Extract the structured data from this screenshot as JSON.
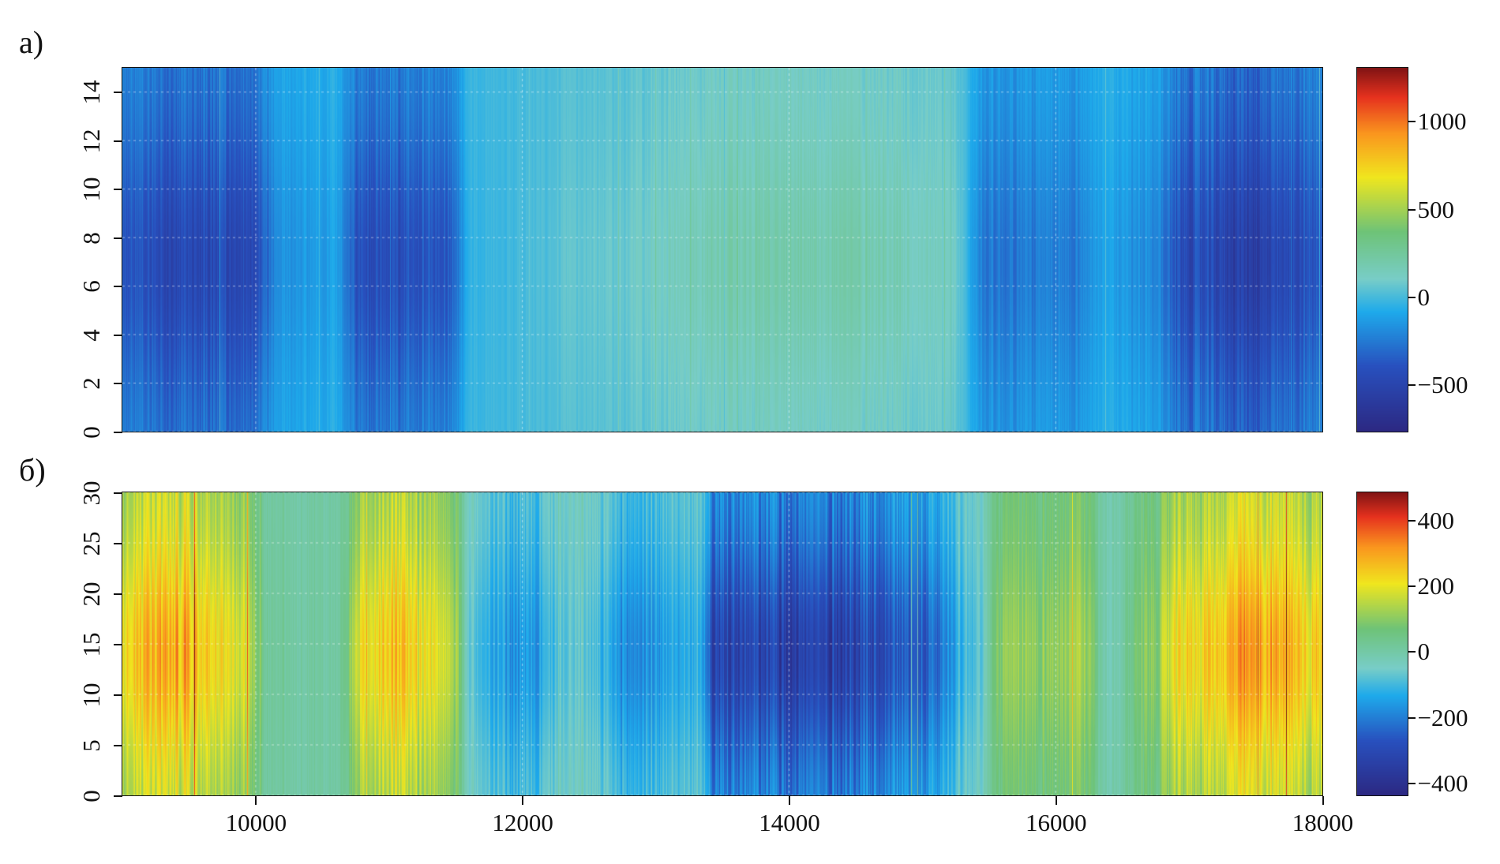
{
  "chart_data": [
    {
      "type": "heatmap",
      "panel_label": "a)",
      "x_range": [
        9000,
        18000
      ],
      "y_range": [
        0,
        15
      ],
      "y_ticks": [
        "0",
        "2",
        "4",
        "6",
        "8",
        "10",
        "12",
        "14"
      ],
      "y_tick_values": [
        0,
        2,
        4,
        6,
        8,
        10,
        12,
        14
      ],
      "x_ticks": [],
      "colorbar": {
        "range": [
          -766,
          1304
        ],
        "ticks": [
          "1000",
          "500",
          "0",
          "−500"
        ],
        "tick_values": [
          1000,
          500,
          0,
          -500
        ],
        "colormap": "jet"
      },
      "grid": true,
      "column_bands": [
        {
          "x": 9000,
          "value": -380
        },
        {
          "x": 9500,
          "value": -480
        },
        {
          "x": 10000,
          "value": -420
        },
        {
          "x": 10200,
          "value": -150
        },
        {
          "x": 10600,
          "value": -120
        },
        {
          "x": 10800,
          "value": -420
        },
        {
          "x": 11400,
          "value": -400
        },
        {
          "x": 11650,
          "value": -30
        },
        {
          "x": 12500,
          "value": 60
        },
        {
          "x": 13500,
          "value": 180
        },
        {
          "x": 14500,
          "value": 200
        },
        {
          "x": 15200,
          "value": 120
        },
        {
          "x": 15500,
          "value": -260
        },
        {
          "x": 16100,
          "value": -240
        },
        {
          "x": 16350,
          "value": -120
        },
        {
          "x": 16700,
          "value": -200
        },
        {
          "x": 17000,
          "value": -450
        },
        {
          "x": 17500,
          "value": -540
        },
        {
          "x": 18000,
          "value": -380
        }
      ],
      "y_profile_peak": 7,
      "y_profile_width": 5
    },
    {
      "type": "heatmap",
      "panel_label": "б)",
      "x_range": [
        9000,
        18000
      ],
      "y_range": [
        0,
        30
      ],
      "y_ticks": [
        "0",
        "5",
        "10",
        "15",
        "20",
        "25",
        "30"
      ],
      "y_tick_values": [
        0,
        5,
        10,
        15,
        20,
        25,
        30
      ],
      "x_ticks": [
        "10000",
        "12000",
        "14000",
        "16000",
        "18000"
      ],
      "x_tick_values": [
        10000,
        12000,
        14000,
        16000,
        18000
      ],
      "colorbar": {
        "range": [
          -437,
          485
        ],
        "ticks": [
          "400",
          "200",
          "0",
          "−200",
          "−400"
        ],
        "tick_values": [
          400,
          200,
          0,
          -200,
          -400
        ],
        "colormap": "jet"
      },
      "grid": true,
      "column_bands": [
        {
          "x": 9000,
          "value": 220
        },
        {
          "x": 9400,
          "value": 290
        },
        {
          "x": 9900,
          "value": 180
        },
        {
          "x": 10100,
          "value": 20
        },
        {
          "x": 10600,
          "value": 0
        },
        {
          "x": 10800,
          "value": 200
        },
        {
          "x": 11000,
          "value": 260
        },
        {
          "x": 11450,
          "value": 170
        },
        {
          "x": 11650,
          "value": -100
        },
        {
          "x": 12000,
          "value": -170
        },
        {
          "x": 12400,
          "value": -60
        },
        {
          "x": 12800,
          "value": -180
        },
        {
          "x": 13300,
          "value": -120
        },
        {
          "x": 13450,
          "value": -320
        },
        {
          "x": 14200,
          "value": -330
        },
        {
          "x": 15000,
          "value": -260
        },
        {
          "x": 15400,
          "value": -80
        },
        {
          "x": 15600,
          "value": 100
        },
        {
          "x": 16200,
          "value": 120
        },
        {
          "x": 16400,
          "value": -30
        },
        {
          "x": 16700,
          "value": 100
        },
        {
          "x": 17000,
          "value": 230
        },
        {
          "x": 17500,
          "value": 300
        },
        {
          "x": 18000,
          "value": 240
        }
      ],
      "y_profile_peak": 14,
      "y_profile_width": 10
    }
  ]
}
